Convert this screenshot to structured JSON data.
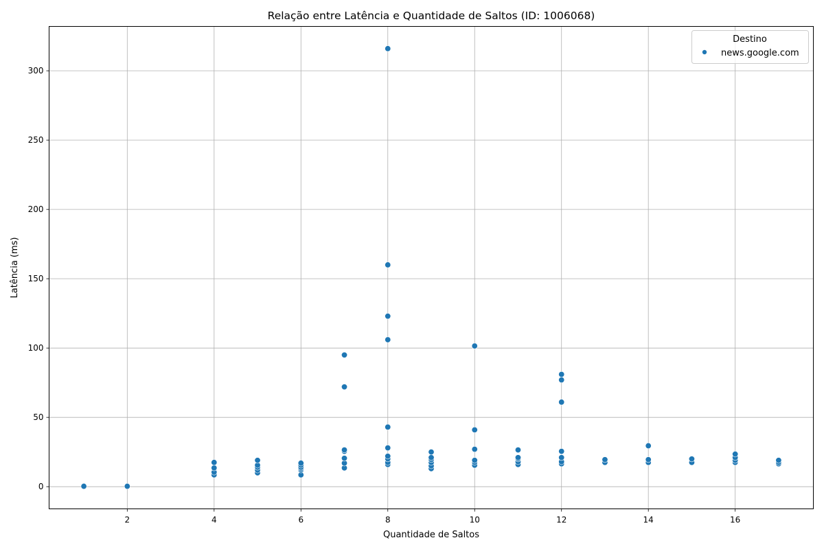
{
  "chart_data": {
    "type": "scatter",
    "title": "Relação entre Latência e Quantidade de Saltos (ID: 1006068)",
    "xlabel": "Quantidade de Saltos",
    "ylabel": "Latência (ms)",
    "xlim": [
      0.2,
      17.8
    ],
    "ylim": [
      -16,
      332
    ],
    "xticks": [
      2,
      4,
      6,
      8,
      10,
      12,
      14,
      16
    ],
    "yticks": [
      0,
      50,
      100,
      150,
      200,
      250,
      300
    ],
    "grid": true,
    "legend_position": "top-right",
    "legend_title": "Destino",
    "color": "#1f77b4",
    "series": [
      {
        "name": "news.google.com",
        "points": [
          [
            1,
            0.3
          ],
          [
            2,
            0.3
          ],
          [
            4,
            8.5
          ],
          [
            4,
            10.5
          ],
          [
            4,
            13.5
          ],
          [
            4,
            17.5
          ],
          [
            5,
            10
          ],
          [
            5,
            12
          ],
          [
            5,
            14
          ],
          [
            5,
            15.5
          ],
          [
            5,
            19
          ],
          [
            6,
            8.5
          ],
          [
            6,
            12
          ],
          [
            6,
            13
          ],
          [
            6,
            14
          ],
          [
            6,
            15.5
          ],
          [
            6,
            17
          ],
          [
            7,
            13.5
          ],
          [
            7,
            17
          ],
          [
            7,
            20.5
          ],
          [
            7,
            25.5
          ],
          [
            7,
            26.5
          ],
          [
            7,
            72
          ],
          [
            7,
            95
          ],
          [
            8,
            16
          ],
          [
            8,
            17.5
          ],
          [
            8,
            20
          ],
          [
            8,
            22
          ],
          [
            8,
            28
          ],
          [
            8,
            43
          ],
          [
            8,
            106
          ],
          [
            8,
            123
          ],
          [
            8,
            160
          ],
          [
            8,
            316
          ],
          [
            9,
            13
          ],
          [
            9,
            15
          ],
          [
            9,
            17.5
          ],
          [
            9,
            19.5
          ],
          [
            9,
            21
          ],
          [
            9,
            25
          ],
          [
            10,
            15.5
          ],
          [
            10,
            17.5
          ],
          [
            10,
            19
          ],
          [
            10,
            27
          ],
          [
            10,
            41
          ],
          [
            10,
            101.5
          ],
          [
            11,
            16
          ],
          [
            11,
            18
          ],
          [
            11,
            20
          ],
          [
            11,
            21
          ],
          [
            11,
            26.5
          ],
          [
            12,
            16.5
          ],
          [
            12,
            18
          ],
          [
            12,
            21
          ],
          [
            12,
            25.5
          ],
          [
            12,
            61
          ],
          [
            12,
            77
          ],
          [
            12,
            81
          ],
          [
            13,
            17.5
          ],
          [
            13,
            19.5
          ],
          [
            14,
            17.5
          ],
          [
            14,
            19.5
          ],
          [
            14,
            29.5
          ],
          [
            15,
            17.5
          ],
          [
            15,
            20
          ],
          [
            16,
            17.5
          ],
          [
            16,
            19
          ],
          [
            16,
            21
          ],
          [
            16,
            23.5
          ],
          [
            17,
            16.5
          ],
          [
            17,
            17.5
          ],
          [
            17,
            19
          ]
        ]
      }
    ]
  }
}
